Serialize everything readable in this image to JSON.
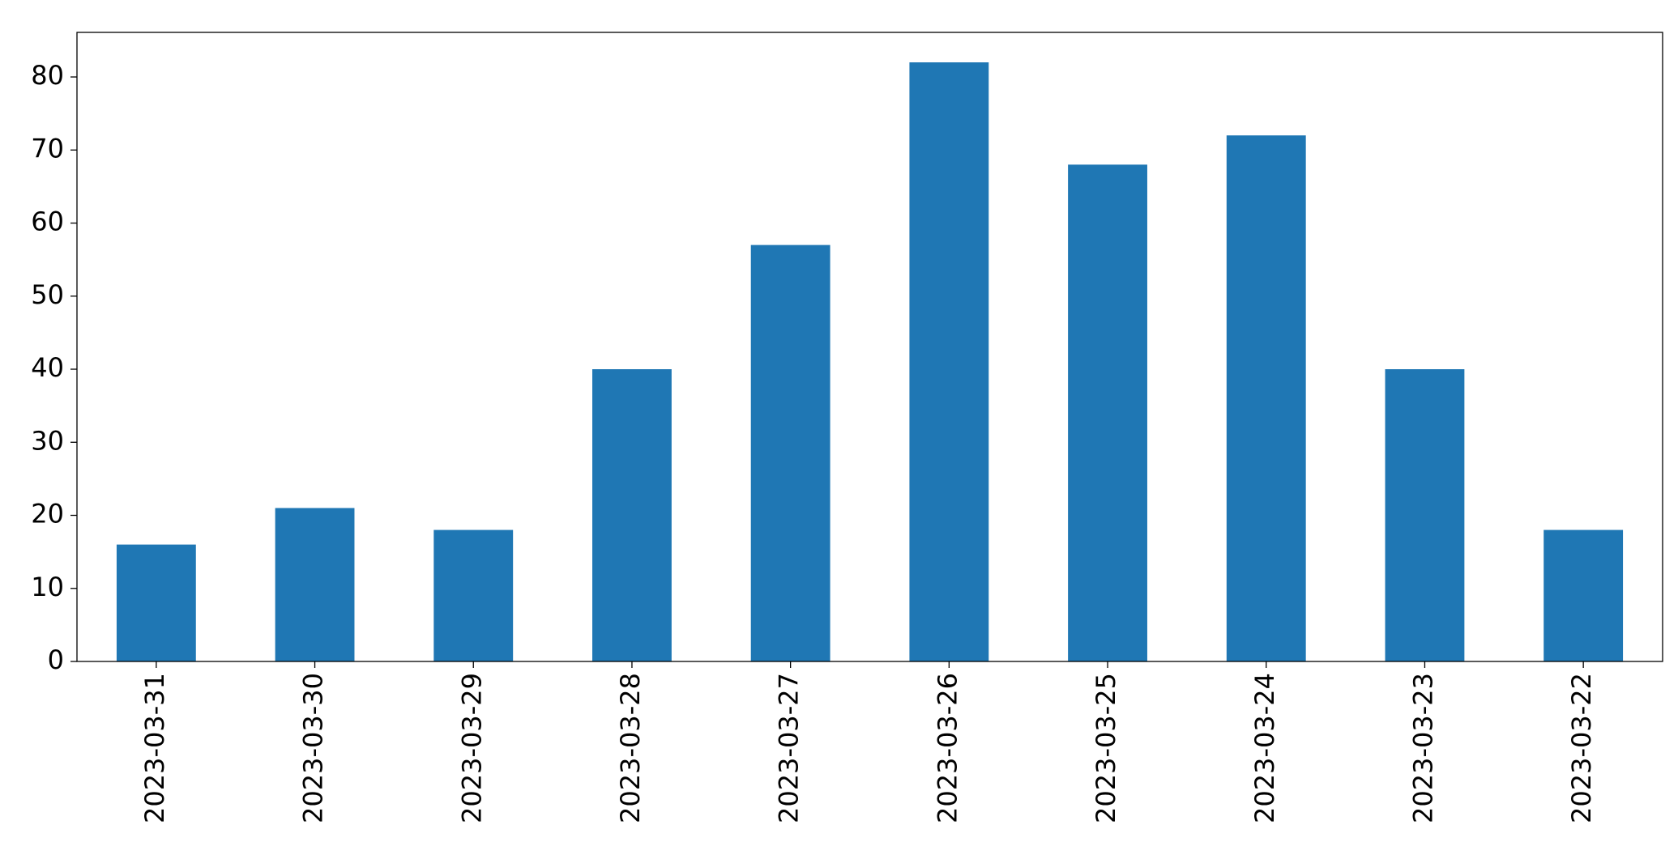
{
  "chart_data": {
    "type": "bar",
    "categories": [
      "2023-03-31",
      "2023-03-30",
      "2023-03-29",
      "2023-03-28",
      "2023-03-27",
      "2023-03-26",
      "2023-03-25",
      "2023-03-24",
      "2023-03-23",
      "2023-03-22"
    ],
    "values": [
      16,
      21,
      18,
      40,
      57,
      82,
      68,
      72,
      40,
      18
    ],
    "color": "#1f77b4",
    "ylim": [
      0,
      86.1
    ],
    "yticks": [
      0,
      10,
      20,
      30,
      40,
      50,
      60,
      70,
      80
    ],
    "grid": false
  }
}
